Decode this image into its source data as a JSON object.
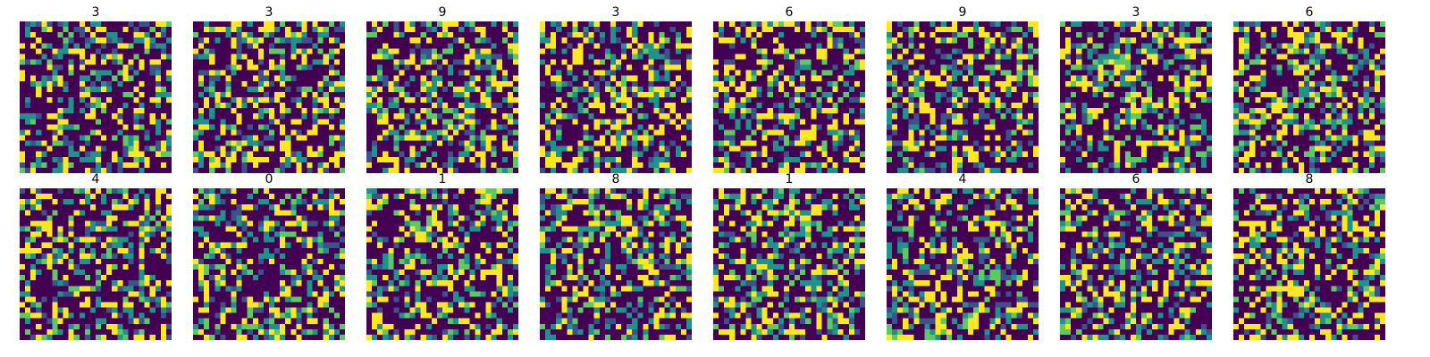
{
  "chart_data": {
    "type": "heatmap",
    "grid_size": 28,
    "colormap": [
      "#440154",
      "#3b528b",
      "#21918c",
      "#5ec962",
      "#fde725"
    ],
    "axes_visible": false,
    "panels": [
      {
        "title": "3",
        "seed": 11
      },
      {
        "title": "3",
        "seed": 23
      },
      {
        "title": "9",
        "seed": 37
      },
      {
        "title": "3",
        "seed": 41
      },
      {
        "title": "6",
        "seed": 53
      },
      {
        "title": "9",
        "seed": 67
      },
      {
        "title": "3",
        "seed": 71
      },
      {
        "title": "6",
        "seed": 83
      },
      {
        "title": "4",
        "seed": 97
      },
      {
        "title": "0",
        "seed": 101
      },
      {
        "title": "1",
        "seed": 113
      },
      {
        "title": "8",
        "seed": 127
      },
      {
        "title": "1",
        "seed": 131
      },
      {
        "title": "4",
        "seed": 149
      },
      {
        "title": "6",
        "seed": 157
      },
      {
        "title": "8",
        "seed": 163
      }
    ]
  }
}
